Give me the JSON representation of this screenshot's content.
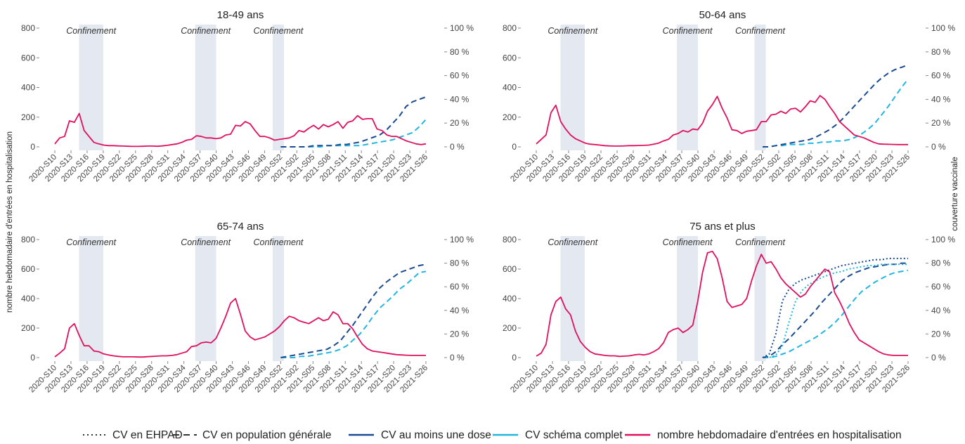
{
  "figure": {
    "ylabel_left": "nombre hebdomadaire d'entrées en hospitalisation",
    "ylabel_right": "couverture vaccinale",
    "lockdown_label": "Confinement",
    "colors": {
      "hosp": "#e0105e",
      "dose1": "#1a4a8f",
      "complete": "#21b6e0",
      "lockdown": "#e3e8f1",
      "legend_linestyle": "#333333"
    },
    "legend": [
      {
        "key": "ehpad",
        "label": "CV en EHPAD",
        "style": "dotted"
      },
      {
        "key": "pop",
        "label": "CV en population générale",
        "style": "dashed"
      },
      {
        "key": "dose1",
        "label": "CV au moins une dose",
        "style": "solid-color"
      },
      {
        "key": "complete",
        "label": "CV schéma complet",
        "style": "solid-color"
      },
      {
        "key": "hosp",
        "label": "nombre hebdomadaire d'entrées en hospitalisation",
        "style": "solid-color"
      }
    ]
  },
  "chart_data": [
    {
      "type": "line",
      "title": "18-49 ans",
      "x_ticks": [
        "2020-S10",
        "2020-S13",
        "2020-S16",
        "2020-S19",
        "2020-S22",
        "2020-S25",
        "2020-S28",
        "2020-S31",
        "2020-S34",
        "2020-S37",
        "2020-S40",
        "2020-S43",
        "2020-S46",
        "2020-S49",
        "2020-S52",
        "2021-S02",
        "2021-S05",
        "2021-S08",
        "2021-S11",
        "2021-S14",
        "2021-S17",
        "2021-S20",
        "2021-S23",
        "2021-S26"
      ],
      "y_left": {
        "range": [
          0,
          800
        ],
        "ticks": [
          "0",
          "200",
          "400",
          "600",
          "800"
        ]
      },
      "y_right": {
        "range": [
          0,
          100
        ],
        "ticks": [
          "0 %",
          "20 %",
          "40 %",
          "60 %",
          "80 %",
          "100 %"
        ]
      },
      "lockdowns": [
        [
          1.5,
          3.0
        ],
        [
          8.7,
          10.0
        ],
        [
          13.5,
          14.2
        ]
      ],
      "hosp": [
        20,
        60,
        70,
        175,
        165,
        225,
        110,
        70,
        30,
        20,
        12,
        8,
        8,
        6,
        5,
        4,
        3,
        3,
        4,
        5,
        5,
        4,
        6,
        10,
        15,
        20,
        30,
        45,
        50,
        75,
        70,
        60,
        60,
        55,
        60,
        80,
        85,
        145,
        140,
        170,
        155,
        110,
        70,
        70,
        60,
        45,
        50,
        55,
        60,
        75,
        110,
        100,
        125,
        145,
        120,
        150,
        135,
        150,
        170,
        125,
        165,
        175,
        210,
        185,
        190,
        190,
        120,
        110,
        80,
        70,
        70,
        55,
        40,
        30,
        20,
        15,
        20
      ],
      "dose1_pop": [
        0,
        0,
        0,
        0,
        0,
        1,
        1,
        1,
        1,
        2,
        2,
        3,
        4,
        6,
        8,
        10,
        14,
        20,
        26,
        34,
        38,
        40,
        42
      ],
      "complete_pop": [
        0,
        0,
        0,
        0,
        0,
        0,
        0,
        1,
        1,
        1,
        1,
        1,
        1,
        2,
        3,
        4,
        5,
        6,
        8,
        10,
        12,
        17,
        23
      ]
    },
    {
      "type": "line",
      "title": "50-64 ans",
      "x_ticks": [
        "2020-S10",
        "2020-S13",
        "2020-S16",
        "2020-S19",
        "2020-S22",
        "2020-S25",
        "2020-S28",
        "2020-S31",
        "2020-S34",
        "2020-S37",
        "2020-S40",
        "2020-S43",
        "2020-S46",
        "2020-S49",
        "2020-S52",
        "2021-S02",
        "2021-S05",
        "2021-S08",
        "2021-S11",
        "2021-S14",
        "2021-S17",
        "2021-S20",
        "2021-S23",
        "2021-S26"
      ],
      "y_left": {
        "range": [
          0,
          800
        ],
        "ticks": [
          "0",
          "200",
          "400",
          "600",
          "800"
        ]
      },
      "y_right": {
        "range": [
          0,
          100
        ],
        "ticks": [
          "0 %",
          "20 %",
          "40 %",
          "60 %",
          "80 %",
          "100 %"
        ]
      },
      "lockdowns": [
        [
          1.5,
          3.0
        ],
        [
          8.7,
          10.0
        ],
        [
          13.5,
          14.2
        ]
      ],
      "hosp": [
        20,
        50,
        80,
        230,
        280,
        170,
        120,
        80,
        55,
        40,
        25,
        18,
        15,
        12,
        8,
        6,
        5,
        5,
        6,
        8,
        8,
        9,
        10,
        12,
        18,
        25,
        40,
        50,
        80,
        90,
        110,
        100,
        120,
        115,
        160,
        240,
        285,
        340,
        260,
        195,
        115,
        110,
        90,
        105,
        110,
        115,
        170,
        170,
        215,
        220,
        240,
        225,
        255,
        260,
        235,
        270,
        310,
        300,
        345,
        320,
        270,
        225,
        170,
        140,
        110,
        80,
        70,
        60,
        45,
        30,
        20,
        18,
        17,
        16,
        15,
        15,
        15
      ],
      "dose1_pop": [
        0,
        0,
        1,
        2,
        3,
        4,
        5,
        6,
        8,
        11,
        14,
        18,
        23,
        29,
        35,
        41,
        47,
        53,
        58,
        62,
        65,
        67,
        69
      ],
      "complete_pop": [
        0,
        0,
        1,
        1,
        2,
        2,
        2,
        3,
        3,
        4,
        4,
        5,
        5,
        6,
        8,
        11,
        15,
        20,
        27,
        34,
        42,
        50,
        57
      ]
    },
    {
      "type": "line",
      "title": "65-74 ans",
      "x_ticks": [
        "2020-S10",
        "2020-S13",
        "2020-S16",
        "2020-S19",
        "2020-S22",
        "2020-S25",
        "2020-S28",
        "2020-S31",
        "2020-S34",
        "2020-S37",
        "2020-S40",
        "2020-S43",
        "2020-S46",
        "2020-S49",
        "2020-S52",
        "2021-S02",
        "2021-S05",
        "2021-S08",
        "2021-S11",
        "2021-S14",
        "2021-S17",
        "2021-S20",
        "2021-S23",
        "2021-S26"
      ],
      "y_left": {
        "range": [
          0,
          800
        ],
        "ticks": [
          "0",
          "200",
          "400",
          "600",
          "800"
        ]
      },
      "y_right": {
        "range": [
          0,
          100
        ],
        "ticks": [
          "0 %",
          "20 %",
          "40 %",
          "60 %",
          "80 %",
          "100 %"
        ]
      },
      "lockdowns": [
        [
          1.5,
          3.0
        ],
        [
          8.7,
          10.0
        ],
        [
          13.5,
          14.2
        ]
      ],
      "hosp": [
        5,
        30,
        60,
        200,
        230,
        150,
        80,
        80,
        45,
        40,
        25,
        18,
        12,
        8,
        5,
        5,
        5,
        4,
        4,
        6,
        8,
        10,
        12,
        12,
        15,
        20,
        30,
        40,
        75,
        80,
        100,
        105,
        100,
        130,
        200,
        280,
        370,
        400,
        295,
        180,
        140,
        120,
        130,
        140,
        160,
        180,
        210,
        250,
        280,
        270,
        250,
        240,
        230,
        250,
        270,
        250,
        260,
        310,
        290,
        230,
        230,
        195,
        140,
        90,
        60,
        45,
        40,
        35,
        30,
        25,
        20,
        18,
        16,
        15,
        15,
        15,
        15
      ],
      "dose1_pop": [
        0,
        1,
        2,
        3,
        4,
        5,
        6,
        7,
        10,
        14,
        21,
        28,
        36,
        44,
        52,
        59,
        64,
        68,
        72,
        74,
        76,
        78,
        79
      ],
      "complete_pop": [
        0,
        0,
        0,
        1,
        1,
        2,
        3,
        4,
        5,
        7,
        10,
        15,
        20,
        27,
        35,
        42,
        47,
        52,
        58,
        62,
        67,
        72,
        73
      ]
    },
    {
      "type": "line",
      "title": "75 ans et plus",
      "x_ticks": [
        "2020-S10",
        "2020-S13",
        "2020-S16",
        "2020-S19",
        "2020-S22",
        "2020-S25",
        "2020-S28",
        "2020-S31",
        "2020-S34",
        "2020-S37",
        "2020-S40",
        "2020-S43",
        "2020-S46",
        "2020-S49",
        "2020-S52",
        "2021-S02",
        "2021-S05",
        "2021-S08",
        "2021-S11",
        "2021-S14",
        "2021-S17",
        "2021-S20",
        "2021-S23",
        "2021-S26"
      ],
      "y_left": {
        "range": [
          0,
          800
        ],
        "ticks": [
          "0",
          "200",
          "400",
          "600",
          "800"
        ]
      },
      "y_right": {
        "range": [
          0,
          100
        ],
        "ticks": [
          "0 %",
          "20 %",
          "40 %",
          "60 %",
          "80 %",
          "100 %"
        ]
      },
      "lockdowns": [
        [
          1.5,
          3.0
        ],
        [
          8.7,
          10.0
        ],
        [
          13.5,
          14.2
        ]
      ],
      "hosp": [
        10,
        30,
        90,
        290,
        380,
        410,
        330,
        290,
        180,
        110,
        70,
        40,
        25,
        20,
        15,
        12,
        12,
        8,
        10,
        12,
        18,
        22,
        18,
        25,
        40,
        60,
        100,
        170,
        190,
        200,
        170,
        190,
        220,
        380,
        580,
        710,
        720,
        670,
        540,
        380,
        340,
        350,
        360,
        400,
        520,
        620,
        700,
        640,
        650,
        600,
        540,
        500,
        470,
        440,
        410,
        430,
        480,
        520,
        560,
        600,
        580,
        440,
        380,
        310,
        230,
        170,
        120,
        100,
        80,
        60,
        40,
        25,
        18,
        15,
        15,
        15,
        15
      ],
      "dose1_pop": [
        0,
        1,
        5,
        11,
        16,
        22,
        28,
        34,
        40,
        47,
        53,
        59,
        65,
        69,
        72,
        74,
        76,
        77,
        78,
        79,
        79,
        80,
        80
      ],
      "complete_pop": [
        0,
        0,
        1,
        3,
        5,
        8,
        11,
        14,
        17,
        21,
        25,
        30,
        36,
        43,
        50,
        56,
        60,
        64,
        67,
        70,
        72,
        73,
        74
      ],
      "dose1_ehpad": [
        0,
        3,
        20,
        48,
        58,
        63,
        66,
        68,
        70,
        72,
        74,
        76,
        78,
        79,
        80,
        81,
        82,
        83,
        83,
        84,
        84,
        84,
        84
      ],
      "complete_ehpad": [
        0,
        0,
        2,
        10,
        30,
        48,
        57,
        62,
        65,
        68,
        70,
        72,
        73,
        75,
        76,
        77,
        78,
        78,
        79,
        79,
        79,
        79,
        79
      ]
    }
  ]
}
